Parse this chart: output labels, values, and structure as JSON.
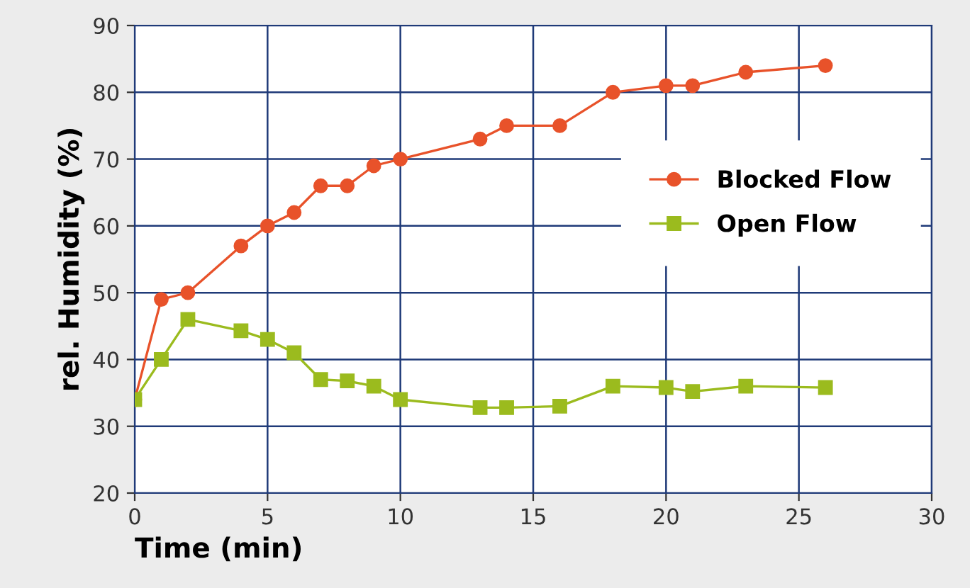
{
  "chart_data": {
    "type": "line",
    "xlabel": "Time (min)",
    "ylabel": "rel. Humidity (%)",
    "x": [
      0,
      1,
      2,
      4,
      5,
      6,
      7,
      8,
      9,
      10,
      13,
      14,
      16,
      18,
      20,
      21,
      23,
      26
    ],
    "series": [
      {
        "name": "Blocked Flow",
        "color": "#e8522a",
        "marker": "circle",
        "values": [
          34,
          49,
          50,
          57,
          60,
          62,
          66,
          66,
          69,
          70,
          73,
          75,
          75,
          80,
          81,
          81,
          83,
          84
        ]
      },
      {
        "name": "Open Flow",
        "color": "#9bbb1e",
        "marker": "square",
        "values": [
          34,
          40,
          46,
          44.3,
          43,
          41,
          37,
          36.8,
          36,
          34,
          32.8,
          32.8,
          33,
          36,
          35.8,
          35.2,
          36,
          35.8
        ]
      }
    ],
    "xlim": [
      0,
      30
    ],
    "ylim": [
      20,
      90
    ],
    "xticks": [
      0,
      5,
      10,
      15,
      20,
      25,
      30
    ],
    "yticks": [
      20,
      30,
      40,
      50,
      60,
      70,
      80,
      90
    ],
    "grid": true,
    "legend": "right",
    "line_style": "solid"
  }
}
